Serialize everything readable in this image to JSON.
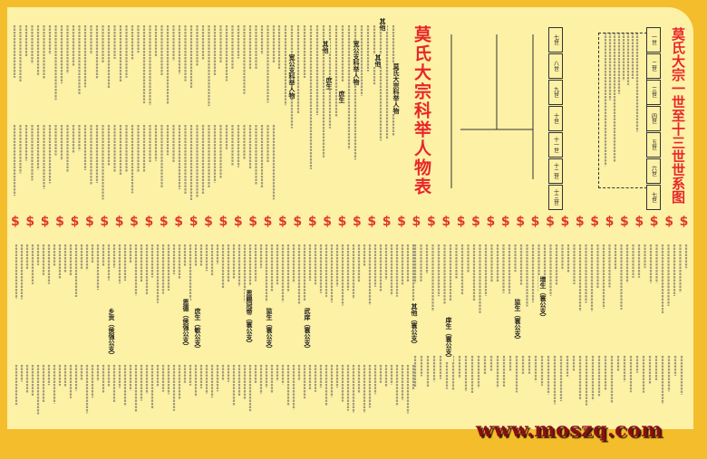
{
  "titles": {
    "main": "莫氏大宗一世至十三世世系图",
    "keju": "莫氏大宗科举人物表",
    "top_sub": "莫氏大宗科举人物"
  },
  "generations_left": [
    "七世",
    "八世",
    "九世",
    "十世",
    "十一世",
    "十二世",
    "十三世"
  ],
  "generations_right": [
    "一世",
    "二世",
    "三世",
    "四世",
    "五世",
    "六世",
    "七世"
  ],
  "top_headings": [
    "宽公支科举人物",
    "其他",
    "庶生",
    "其他",
    "宽公支科举人物",
    "其他",
    "庶生"
  ],
  "bottom_headings": [
    "乡贡（侯强公支）",
    "恩德（侯强公支）",
    "庶生（敏公支）",
    "恩赐冠带（寰公支）",
    "监生（寰公支）",
    "武庠（寰公支）",
    "其他（寰公支）",
    "庠生（寰公支）",
    "监生（寰公支）",
    "增生（寰公支）"
  ],
  "band_symbol": "$",
  "watermark": "www.moszq.com",
  "colors": {
    "frame": "#f4bd2c",
    "paper": "#fdf1a6",
    "title": "#e8262a",
    "watermark": "#8a0e16"
  }
}
